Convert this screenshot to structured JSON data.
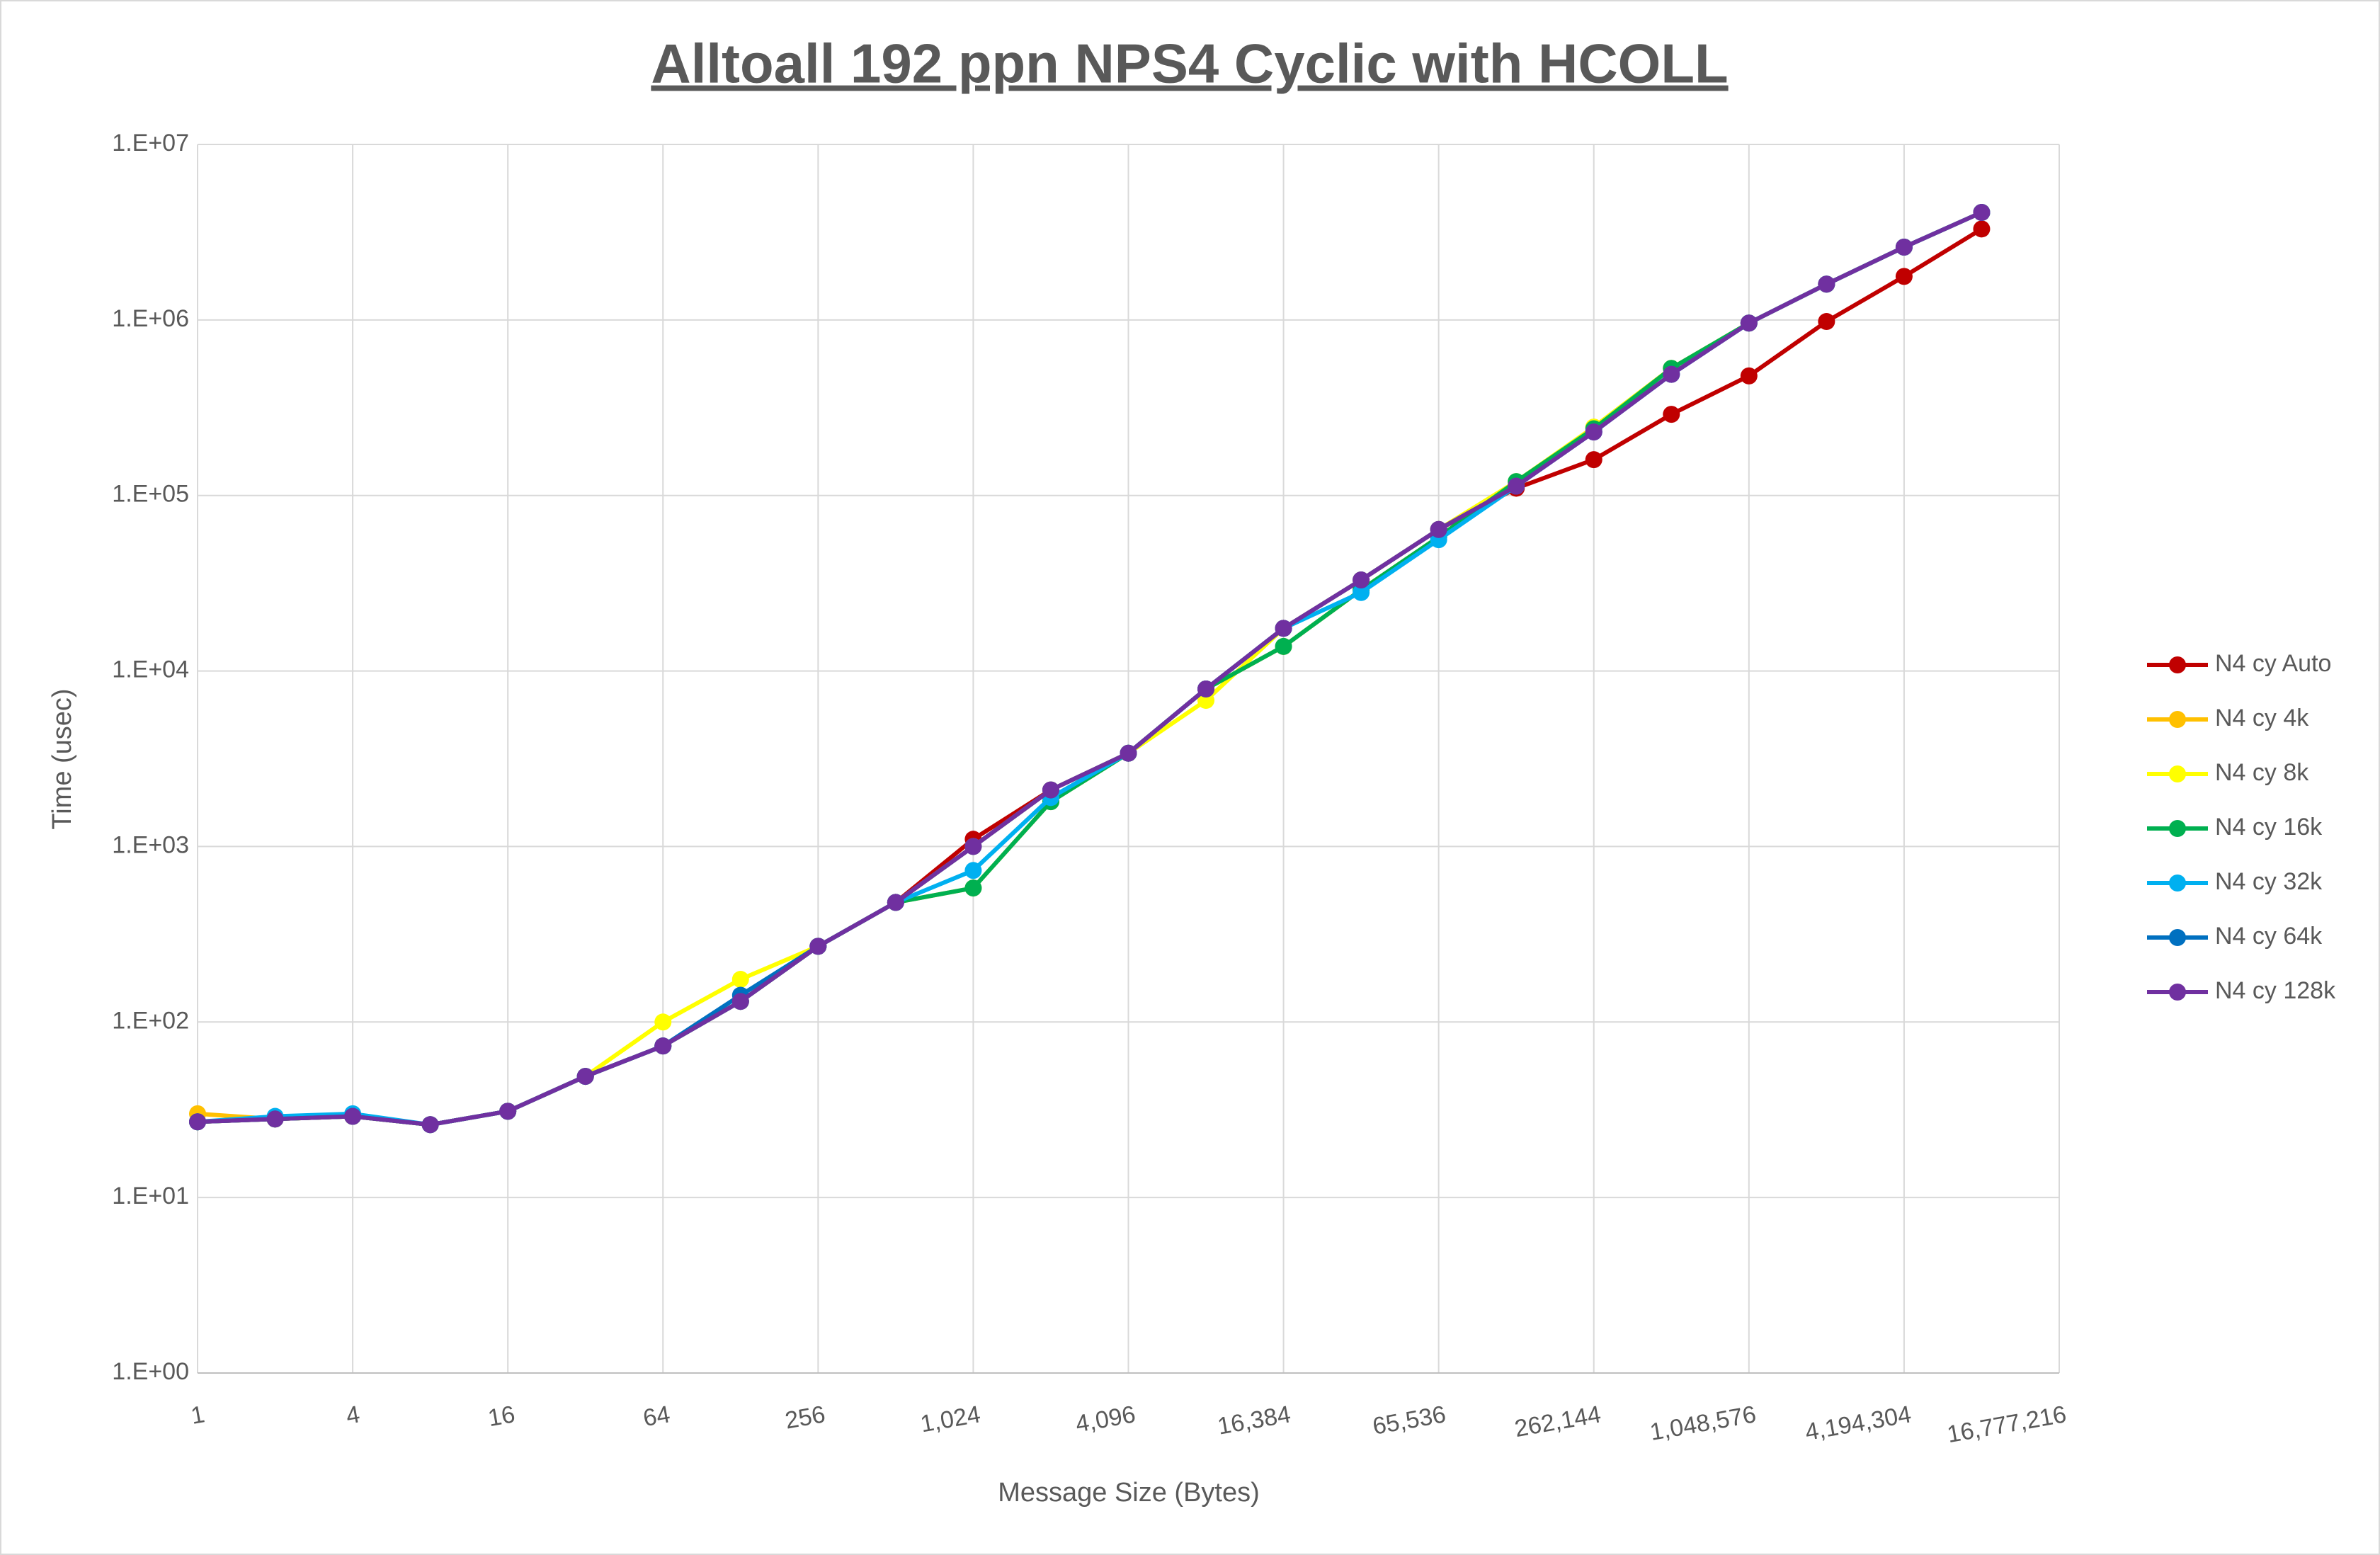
{
  "chart_data": {
    "type": "line",
    "title": "Alltoall 192 ppn NPS4 Cyclic with HCOLL",
    "x_label": "Message Size (Bytes)",
    "y_label": "Time (usec)",
    "x_log": true,
    "y_log": true,
    "grid": true,
    "legend": "right",
    "x": [
      1,
      2,
      4,
      8,
      16,
      32,
      64,
      128,
      256,
      512,
      1024,
      2048,
      4096,
      8192,
      16384,
      32768,
      65536,
      131072,
      262144,
      524288,
      1048576,
      2097152,
      4194304,
      8388608
    ],
    "xlim": [
      1,
      16777216
    ],
    "xticks": [
      1,
      4,
      16,
      64,
      256,
      {
        "value": 1024,
        "label": "1,024"
      },
      {
        "value": 4096,
        "label": "4,096"
      },
      {
        "value": 16384,
        "label": "16,384"
      },
      {
        "value": 65536,
        "label": "65,536"
      },
      {
        "value": 262144,
        "label": "262,144"
      },
      {
        "value": 1048576,
        "label": "1,048,576"
      },
      {
        "value": 4194304,
        "label": "4,194,304"
      },
      {
        "value": 16777216,
        "label": "16,777,216"
      }
    ],
    "ylim": [
      1,
      10000000
    ],
    "yticks": [
      {
        "value": 1,
        "label": "1.E+00"
      },
      {
        "value": 10,
        "label": "1.E+01"
      },
      {
        "value": 100,
        "label": "1.E+02"
      },
      {
        "value": 1000,
        "label": "1.E+03"
      },
      {
        "value": 10000,
        "label": "1.E+04"
      },
      {
        "value": 100000,
        "label": "1.E+05"
      },
      {
        "value": 1000000,
        "label": "1.E+06"
      },
      {
        "value": 10000000,
        "label": "1.E+07"
      }
    ],
    "series": [
      {
        "name": "N4 cy Auto",
        "color": "#c00000",
        "values": [
          27,
          28,
          29,
          26,
          31,
          49,
          73,
          131,
          270,
          480,
          1100,
          2100,
          3400,
          7900,
          17500,
          33000,
          64000,
          110000,
          160000,
          290000,
          480000,
          980000,
          1770000,
          3300000
        ]
      },
      {
        "name": "N4 cy 4k",
        "color": "#ffc000",
        "values": [
          30,
          28,
          29,
          26,
          31,
          49,
          73,
          131,
          270,
          480,
          580,
          1800,
          3400,
          7900,
          13800,
          29000,
          58000,
          118000,
          245000,
          530000,
          960000,
          1600000,
          2600000,
          4100000
        ]
      },
      {
        "name": "N4 cy 8k",
        "color": "#ffff00",
        "values": [
          27,
          28,
          29,
          26,
          31,
          49,
          100,
          175,
          270,
          480,
          1000,
          2100,
          3400,
          6800,
          17500,
          33000,
          64000,
          120000,
          245000,
          530000,
          960000,
          1600000,
          2600000,
          4100000
        ]
      },
      {
        "name": "N4 cy 16k",
        "color": "#00b050",
        "values": [
          27,
          28,
          29,
          26,
          31,
          49,
          73,
          131,
          270,
          480,
          580,
          1800,
          3400,
          7900,
          13800,
          29000,
          58000,
          120000,
          240000,
          530000,
          960000,
          1600000,
          2600000,
          4100000
        ]
      },
      {
        "name": "N4 cy 32k",
        "color": "#00b0f0",
        "values": [
          27,
          29,
          30,
          26,
          31,
          49,
          73,
          131,
          270,
          480,
          730,
          1900,
          3400,
          7900,
          17500,
          28000,
          56000,
          113000,
          230000,
          490000,
          960000,
          1600000,
          2600000,
          4100000
        ]
      },
      {
        "name": "N4 cy 64k",
        "color": "#0070c0",
        "values": [
          27,
          28,
          29,
          26,
          31,
          49,
          73,
          142,
          270,
          480,
          1000,
          2100,
          3400,
          7900,
          17500,
          33000,
          64000,
          113000,
          230000,
          490000,
          960000,
          1600000,
          2600000,
          4100000
        ]
      },
      {
        "name": "N4 cy 128k",
        "color": "#7030a0",
        "values": [
          27,
          28,
          29,
          26,
          31,
          49,
          73,
          131,
          270,
          480,
          1000,
          2100,
          3400,
          7900,
          17500,
          33000,
          64000,
          113000,
          230000,
          490000,
          960000,
          1600000,
          2600000,
          4100000
        ]
      }
    ]
  }
}
